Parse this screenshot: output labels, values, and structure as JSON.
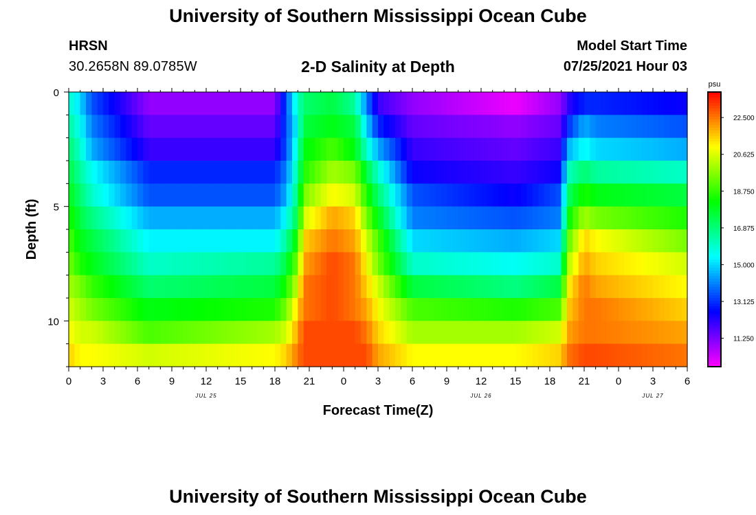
{
  "header": {
    "title": "University of Southern Mississippi Ocean Cube",
    "station": "HRSN",
    "coords": "30.2658N  89.0785W",
    "subtitle": "2-D Salinity at Depth",
    "start_label": "Model Start Time",
    "start_value": "07/25/2021 Hour 03"
  },
  "footer": {
    "title": "University of Southern Mississippi Ocean Cube"
  },
  "chart_data": {
    "type": "heatmap",
    "title": "2-D Salinity at Depth",
    "xlabel": "Forecast Time(Z)",
    "ylabel": "Depth (ft)",
    "x_range_hours": [
      0,
      54
    ],
    "y_range_ft": [
      0,
      12
    ],
    "x_ticks": [
      {
        "h": 0,
        "label": "0"
      },
      {
        "h": 3,
        "label": "3"
      },
      {
        "h": 6,
        "label": "6"
      },
      {
        "h": 9,
        "label": "9"
      },
      {
        "h": 12,
        "label": "12"
      },
      {
        "h": 15,
        "label": "15"
      },
      {
        "h": 18,
        "label": "18"
      },
      {
        "h": 21,
        "label": "21"
      },
      {
        "h": 24,
        "label": "0"
      },
      {
        "h": 27,
        "label": "3"
      },
      {
        "h": 30,
        "label": "6"
      },
      {
        "h": 33,
        "label": "9"
      },
      {
        "h": 36,
        "label": "12"
      },
      {
        "h": 39,
        "label": "15"
      },
      {
        "h": 42,
        "label": "18"
      },
      {
        "h": 45,
        "label": "21"
      },
      {
        "h": 48,
        "label": "0"
      },
      {
        "h": 51,
        "label": "3"
      },
      {
        "h": 54,
        "label": "6"
      }
    ],
    "date_labels": [
      {
        "h": 12,
        "label": "JUL 25"
      },
      {
        "h": 36,
        "label": "JUL 26"
      },
      {
        "h": 51,
        "label": "JUL 27"
      }
    ],
    "y_ticks": [
      0,
      5,
      10
    ],
    "colorbar": {
      "unit": "psu",
      "min": 9.8,
      "max": 23.8,
      "ticks": [
        "22.500",
        "20.625",
        "18.750",
        "16.875",
        "15.000",
        "13.125",
        "11.250"
      ],
      "tick_values": [
        22.5,
        20.625,
        18.75,
        16.875,
        15.0,
        13.125,
        11.25
      ]
    },
    "depth_levels_ft": [
      0.5,
      1.5,
      2.5,
      3.5,
      4.5,
      5.5,
      6.5,
      7.5,
      8.5,
      9.5,
      10.5,
      11.5
    ],
    "profile_times_hours": [
      0,
      1,
      2,
      7,
      18,
      19,
      20,
      20.5,
      23,
      25,
      26,
      27,
      30,
      39,
      43,
      43.5,
      45,
      46,
      54
    ],
    "profiles_psu": [
      [
        16,
        16.5,
        17,
        17.5,
        18,
        18.5,
        19,
        19.5,
        20,
        20.5,
        21,
        21.5
      ],
      [
        15,
        15.5,
        16,
        16.5,
        17,
        17.5,
        18,
        18.5,
        19.5,
        20,
        20.5,
        21
      ],
      [
        13.5,
        14,
        14.5,
        15.5,
        16,
        16.8,
        17.5,
        18,
        18.8,
        19.5,
        20.5,
        21
      ],
      [
        11,
        11.5,
        12,
        13,
        13.5,
        14.5,
        15.3,
        16,
        17,
        18,
        19,
        20.5
      ],
      [
        11,
        11.5,
        12,
        13,
        13.5,
        14.5,
        15.3,
        16.5,
        17.5,
        18.5,
        20,
        21
      ],
      [
        13.5,
        13.5,
        13.5,
        14,
        14.5,
        15.5,
        16.5,
        17.5,
        18.5,
        19.5,
        20.5,
        21.5
      ],
      [
        16,
        15.5,
        16,
        16.5,
        17,
        17.5,
        18.5,
        19.5,
        20.5,
        21.5,
        22,
        22.5
      ],
      [
        17,
        17.5,
        18,
        18.5,
        19.5,
        20.5,
        21.5,
        22,
        22.5,
        22.5,
        23,
        23
      ],
      [
        17.5,
        18,
        19,
        20,
        21,
        22,
        22.5,
        23,
        23,
        23,
        23,
        23
      ],
      [
        16.5,
        17.5,
        18,
        19.5,
        20.5,
        21.5,
        22,
        22.5,
        22.5,
        22.5,
        23,
        23
      ],
      [
        14,
        15,
        16,
        17.5,
        18.5,
        19.5,
        20.5,
        21,
        21.5,
        22,
        22.5,
        23
      ],
      [
        12,
        13,
        14.5,
        16,
        17,
        18,
        19,
        19.5,
        20.5,
        21,
        21.5,
        22
      ],
      [
        11,
        11.5,
        12,
        12.5,
        13.5,
        14,
        15,
        16,
        17.5,
        19,
        20,
        21
      ],
      [
        10,
        11,
        11.5,
        12,
        12.5,
        13.5,
        14.5,
        15.5,
        16.8,
        18.5,
        20,
        21
      ],
      [
        11,
        11.5,
        12,
        12.5,
        13.5,
        14,
        15,
        16,
        17.5,
        19,
        20.5,
        21.5
      ],
      [
        12,
        13,
        14.5,
        16,
        17,
        18,
        19,
        20,
        21,
        21.5,
        22,
        22.5
      ],
      [
        13,
        14.5,
        15.5,
        17,
        18.5,
        20,
        21.5,
        22,
        22.5,
        22.5,
        22.5,
        23
      ],
      [
        13,
        14,
        15,
        16.5,
        18,
        19.5,
        21,
        21.5,
        22,
        22.5,
        22.5,
        23
      ],
      [
        12.5,
        13.5,
        14.5,
        16,
        17.5,
        18.5,
        19.5,
        20.5,
        21,
        21.5,
        22,
        22.5
      ]
    ]
  }
}
